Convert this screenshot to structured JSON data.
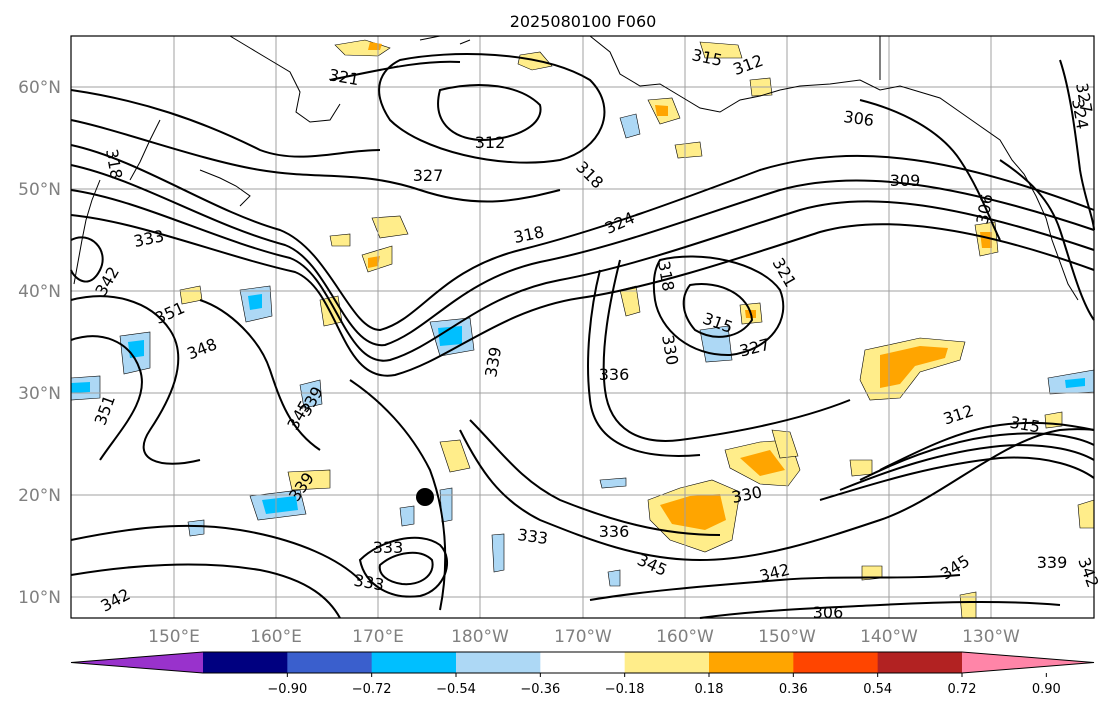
{
  "title": "2025080100 F060",
  "map": {
    "lat_ticks": [
      "10°N",
      "20°N",
      "30°N",
      "40°N",
      "50°N",
      "60°N"
    ],
    "lon_ticks": [
      "150°E",
      "160°E",
      "170°E",
      "180°W",
      "170°W",
      "160°W",
      "150°W",
      "140°W",
      "130°W"
    ],
    "contour_labels": [
      "321",
      "318",
      "312",
      "318",
      "327",
      "315",
      "312",
      "306",
      "309",
      "324",
      "327",
      "333",
      "342",
      "318",
      "324",
      "318",
      "321",
      "351",
      "348",
      "315",
      "327",
      "330",
      "339",
      "336",
      "351",
      "345",
      "339",
      "339",
      "330",
      "336",
      "333",
      "345",
      "342",
      "345",
      "339",
      "342",
      "312",
      "315",
      "306",
      "342",
      "333",
      "333",
      "306"
    ]
  },
  "colorbar": {
    "ticks": [
      "−0.90",
      "−0.72",
      "−0.54",
      "−0.36",
      "−0.18",
      "0.18",
      "0.36",
      "0.54",
      "0.72",
      "0.90"
    ],
    "colors": [
      "#9932cc",
      "#000080",
      "#3a5fcd",
      "#00bfff",
      "#add8f5",
      "#ffffff",
      "#ffed8a",
      "#ffa500",
      "#ff4500",
      "#b22222",
      "#ff85a8"
    ]
  }
}
